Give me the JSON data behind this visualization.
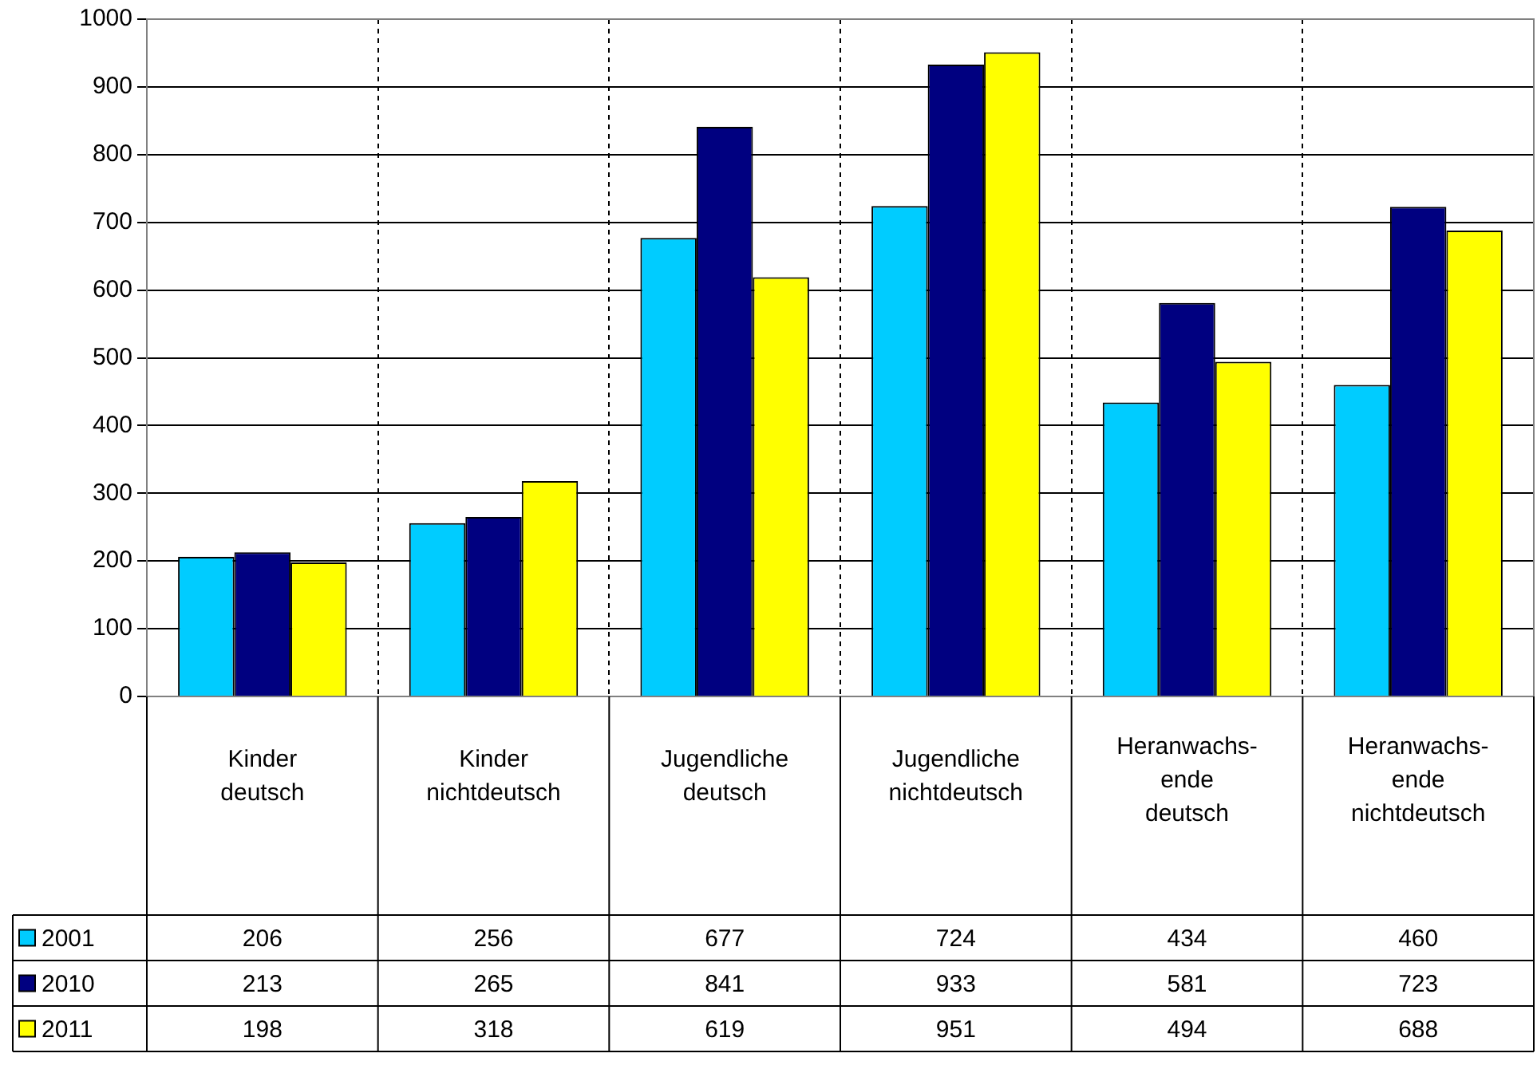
{
  "chart_data": {
    "type": "bar",
    "categories": [
      "Kinder\ndeutsch",
      "Kinder\nnichtdeutsch",
      "Jugendliche\ndeutsch",
      "Jugendliche\nnichtdeutsch",
      "Heranwachs-\nende\ndeutsch",
      "Heranwachs-\nende\nnichtdeutsch"
    ],
    "series": [
      {
        "name": "2001",
        "color": "#00ccff",
        "values": [
          206,
          256,
          677,
          724,
          434,
          460
        ]
      },
      {
        "name": "2010",
        "color": "#000080",
        "values": [
          213,
          265,
          841,
          933,
          581,
          723
        ]
      },
      {
        "name": "2011",
        "color": "#ffff00",
        "values": [
          198,
          318,
          619,
          951,
          494,
          688
        ]
      }
    ],
    "ylim": [
      0,
      1000
    ],
    "yticks": [
      0,
      100,
      200,
      300,
      400,
      500,
      600,
      700,
      800,
      900,
      1000
    ],
    "grid": true,
    "legend": "bottom",
    "data_labels": true
  }
}
